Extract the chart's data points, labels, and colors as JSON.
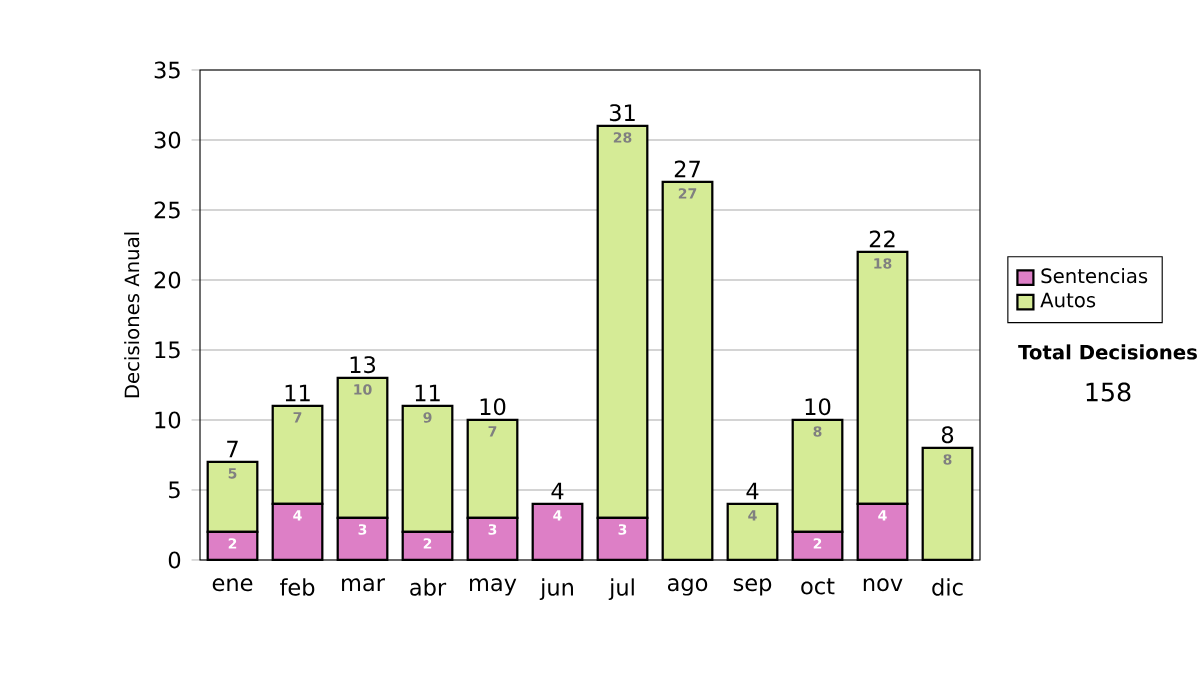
{
  "chart_data": {
    "type": "bar",
    "stacked": true,
    "ylabel": "Decisiones Anual",
    "categories": [
      "ene",
      "feb",
      "mar",
      "abr",
      "may",
      "jun",
      "jul",
      "ago",
      "sep",
      "oct",
      "nov",
      "dic"
    ],
    "series": [
      {
        "name": "Sentencias",
        "color": "#dd7fc6",
        "values": [
          2,
          4,
          3,
          2,
          3,
          4,
          3,
          0,
          0,
          2,
          4,
          0
        ],
        "value_labels": [
          "2",
          "4",
          "3",
          "2",
          "3",
          "4",
          "3",
          null,
          null,
          "2",
          "4",
          null
        ]
      },
      {
        "name": "Autos",
        "color": "#d5eb96",
        "values": [
          5,
          7,
          10,
          9,
          7,
          0,
          28,
          27,
          4,
          8,
          18,
          8
        ],
        "value_labels": [
          "5",
          "7",
          "10",
          "9",
          "7",
          null,
          "28",
          "27",
          "4",
          "8",
          "18",
          "8"
        ]
      }
    ],
    "totals": [
      "7",
      "11",
      "13",
      "11",
      "10",
      "4",
      "31",
      "27",
      "4",
      "10",
      "22",
      "8"
    ],
    "ylim": [
      0,
      35
    ],
    "yticks": [
      0,
      5,
      10,
      15,
      20,
      25,
      30,
      35
    ],
    "grid": "y",
    "legend": "right",
    "annotations": [
      "Total Decisiones",
      "158"
    ]
  }
}
